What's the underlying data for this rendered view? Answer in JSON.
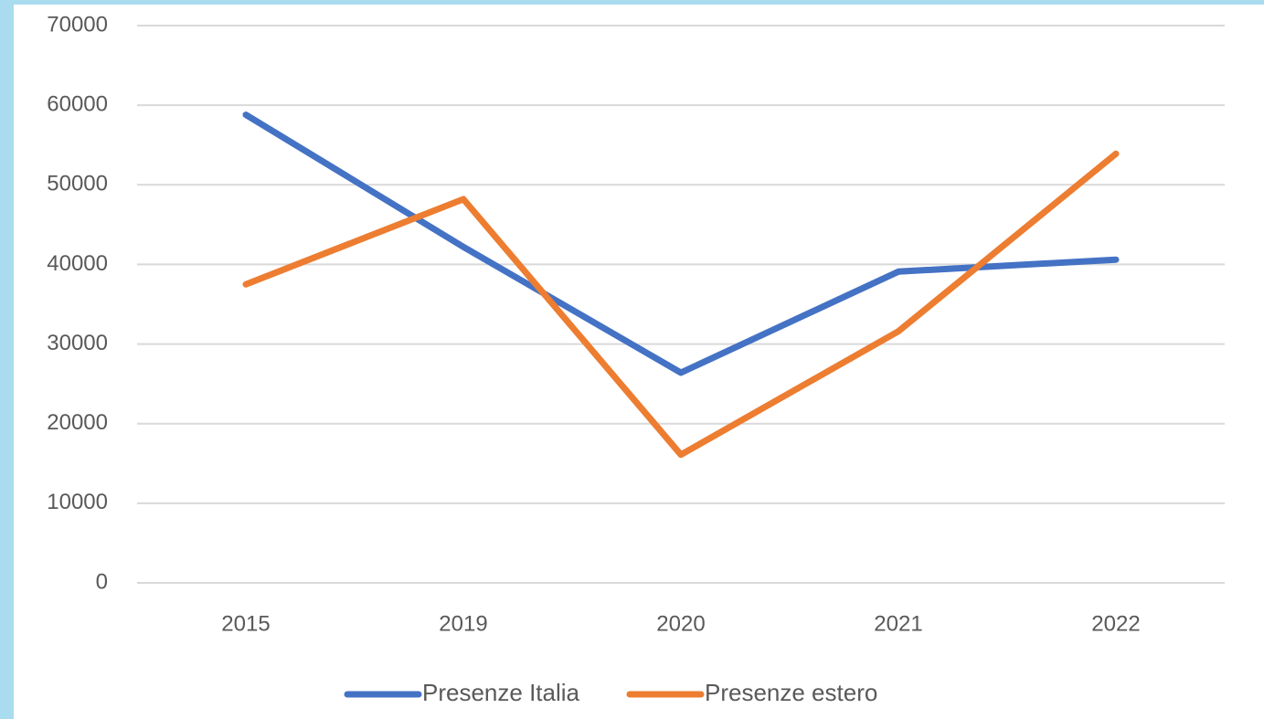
{
  "chart_data": {
    "type": "line",
    "categories": [
      "2015",
      "2019",
      "2020",
      "2021",
      "2022"
    ],
    "series": [
      {
        "name": "Presenze Italia",
        "color": "#4472c4",
        "values": [
          58800,
          42200,
          26400,
          39100,
          40600
        ]
      },
      {
        "name": "Presenze estero",
        "color": "#ed7d31",
        "values": [
          37500,
          48200,
          16100,
          31600,
          53900
        ]
      }
    ],
    "ylim": [
      0,
      70000
    ],
    "yticks": [
      0,
      10000,
      20000,
      30000,
      40000,
      50000,
      60000,
      70000
    ],
    "grid": true,
    "legend": "bottom"
  }
}
